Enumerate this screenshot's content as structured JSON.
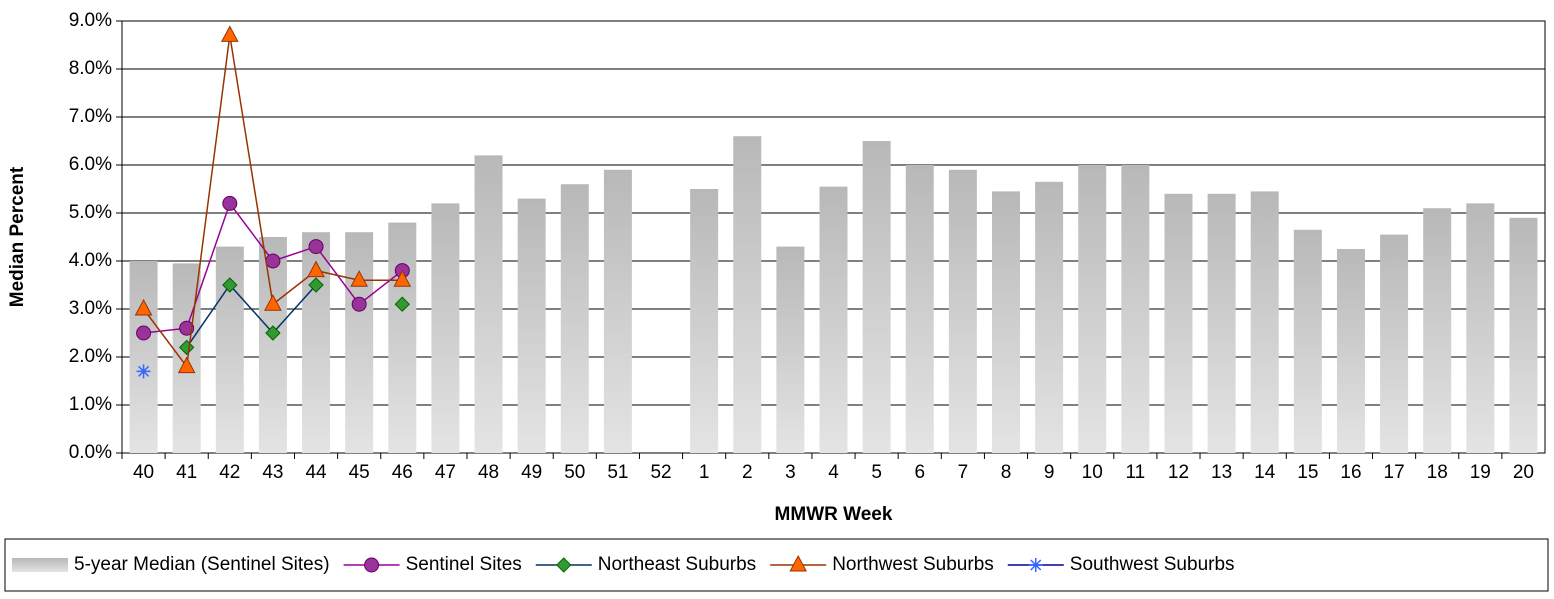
{
  "chart_data": {
    "type": "bar_line",
    "x_label": "MMWR Week",
    "y_label": "Median Percent",
    "categories": [
      "40",
      "41",
      "42",
      "43",
      "44",
      "45",
      "46",
      "47",
      "48",
      "49",
      "50",
      "51",
      "52",
      "1",
      "2",
      "3",
      "4",
      "5",
      "6",
      "7",
      "8",
      "9",
      "10",
      "11",
      "12",
      "13",
      "14",
      "15",
      "16",
      "17",
      "18",
      "19",
      "20"
    ],
    "ylim": [
      0,
      9
    ],
    "yticks": [
      {
        "value": 0,
        "label": "0.0%"
      },
      {
        "value": 1,
        "label": "1.0%"
      },
      {
        "value": 2,
        "label": "2.0%"
      },
      {
        "value": 3,
        "label": "3.0%"
      },
      {
        "value": 4,
        "label": "4.0%"
      },
      {
        "value": 5,
        "label": "5.0%"
      },
      {
        "value": 6,
        "label": "6.0%"
      },
      {
        "value": 7,
        "label": "7.0%"
      },
      {
        "value": 8,
        "label": "8.0%"
      },
      {
        "value": 9,
        "label": "9.0%"
      }
    ],
    "grid": true,
    "legend": "bottom",
    "series": [
      {
        "name": "5-year Median (Sentinel Sites)",
        "type": "bar",
        "color": "#c8c8c8",
        "values": [
          4.0,
          3.95,
          4.3,
          4.5,
          4.6,
          4.6,
          4.8,
          5.2,
          6.2,
          5.3,
          5.6,
          5.9,
          null,
          5.5,
          6.6,
          4.3,
          5.55,
          6.5,
          6.0,
          5.9,
          5.45,
          5.65,
          6.0,
          6.0,
          5.4,
          5.4,
          5.45,
          4.65,
          4.25,
          4.55,
          5.1,
          5.2,
          4.9
        ]
      },
      {
        "name": "Sentinel Sites",
        "type": "line",
        "marker": "circle",
        "color": "#990099",
        "marker_color": "#993399",
        "values": [
          2.5,
          2.6,
          5.2,
          4.0,
          4.3,
          3.1,
          3.8,
          null,
          null,
          null,
          null,
          null,
          null,
          null,
          null,
          null,
          null,
          null,
          null,
          null,
          null,
          null,
          null,
          null,
          null,
          null,
          null,
          null,
          null,
          null,
          null,
          null,
          null
        ]
      },
      {
        "name": "Northeast Suburbs",
        "type": "line",
        "marker": "diamond",
        "color": "#003366",
        "marker_color": "#339933",
        "values": [
          null,
          2.2,
          3.5,
          2.5,
          3.5,
          null,
          3.1,
          null,
          null,
          null,
          null,
          null,
          null,
          null,
          null,
          null,
          null,
          null,
          null,
          null,
          null,
          null,
          null,
          null,
          null,
          null,
          null,
          null,
          null,
          null,
          null,
          null,
          null
        ]
      },
      {
        "name": "Northwest Suburbs",
        "type": "line",
        "marker": "triangle",
        "color": "#993300",
        "marker_color": "#ff6600",
        "values": [
          3.0,
          1.8,
          8.7,
          3.1,
          3.8,
          3.6,
          3.6,
          null,
          null,
          null,
          null,
          null,
          null,
          null,
          null,
          null,
          null,
          null,
          null,
          null,
          null,
          null,
          null,
          null,
          null,
          null,
          null,
          null,
          null,
          null,
          null,
          null,
          null
        ]
      },
      {
        "name": "Southwest Suburbs",
        "type": "line",
        "marker": "star",
        "color": "#000099",
        "marker_color": "#3366ff",
        "values": [
          1.7,
          null,
          null,
          null,
          null,
          null,
          null,
          null,
          null,
          null,
          null,
          null,
          null,
          null,
          null,
          null,
          null,
          null,
          null,
          null,
          null,
          null,
          null,
          null,
          null,
          null,
          null,
          null,
          null,
          null,
          null,
          null,
          null
        ]
      }
    ]
  }
}
